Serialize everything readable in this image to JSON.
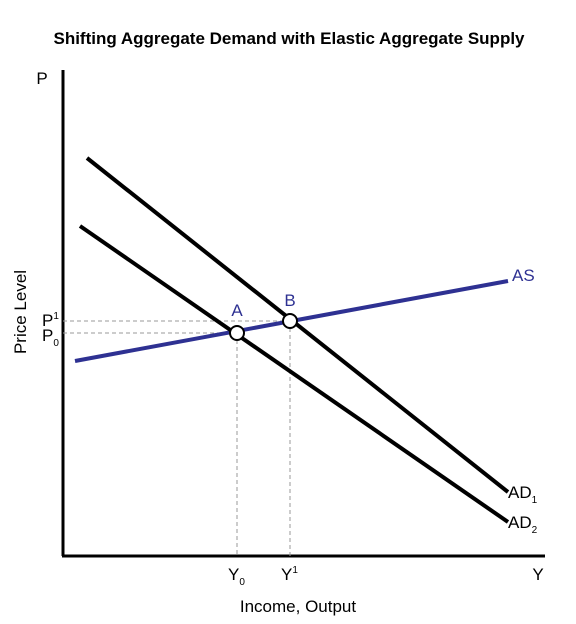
{
  "title": "Shifting Aggregate Demand with Elastic Aggregate Supply",
  "axes": {
    "y_symbol": "P",
    "x_symbol": "Y",
    "y_label": "Price Level",
    "x_label": "Income, Output"
  },
  "ticks": {
    "p1_base": "P",
    "p1_sup": "1",
    "p0_base": "P",
    "p0_sub": "0",
    "y0_base": "Y",
    "y0_sub": "0",
    "y1_base": "Y",
    "y1_sup": "1"
  },
  "curves": {
    "as": {
      "label": "AS",
      "color": "#2e3192"
    },
    "ad1": {
      "base": "AD",
      "sub": "1",
      "color": "#000000"
    },
    "ad2": {
      "base": "AD",
      "sub": "2",
      "color": "#000000"
    }
  },
  "points": {
    "a": {
      "label": "A",
      "color": "#2e3192"
    },
    "b": {
      "label": "B",
      "color": "#2e3192"
    }
  },
  "guide_color": "#999999"
}
